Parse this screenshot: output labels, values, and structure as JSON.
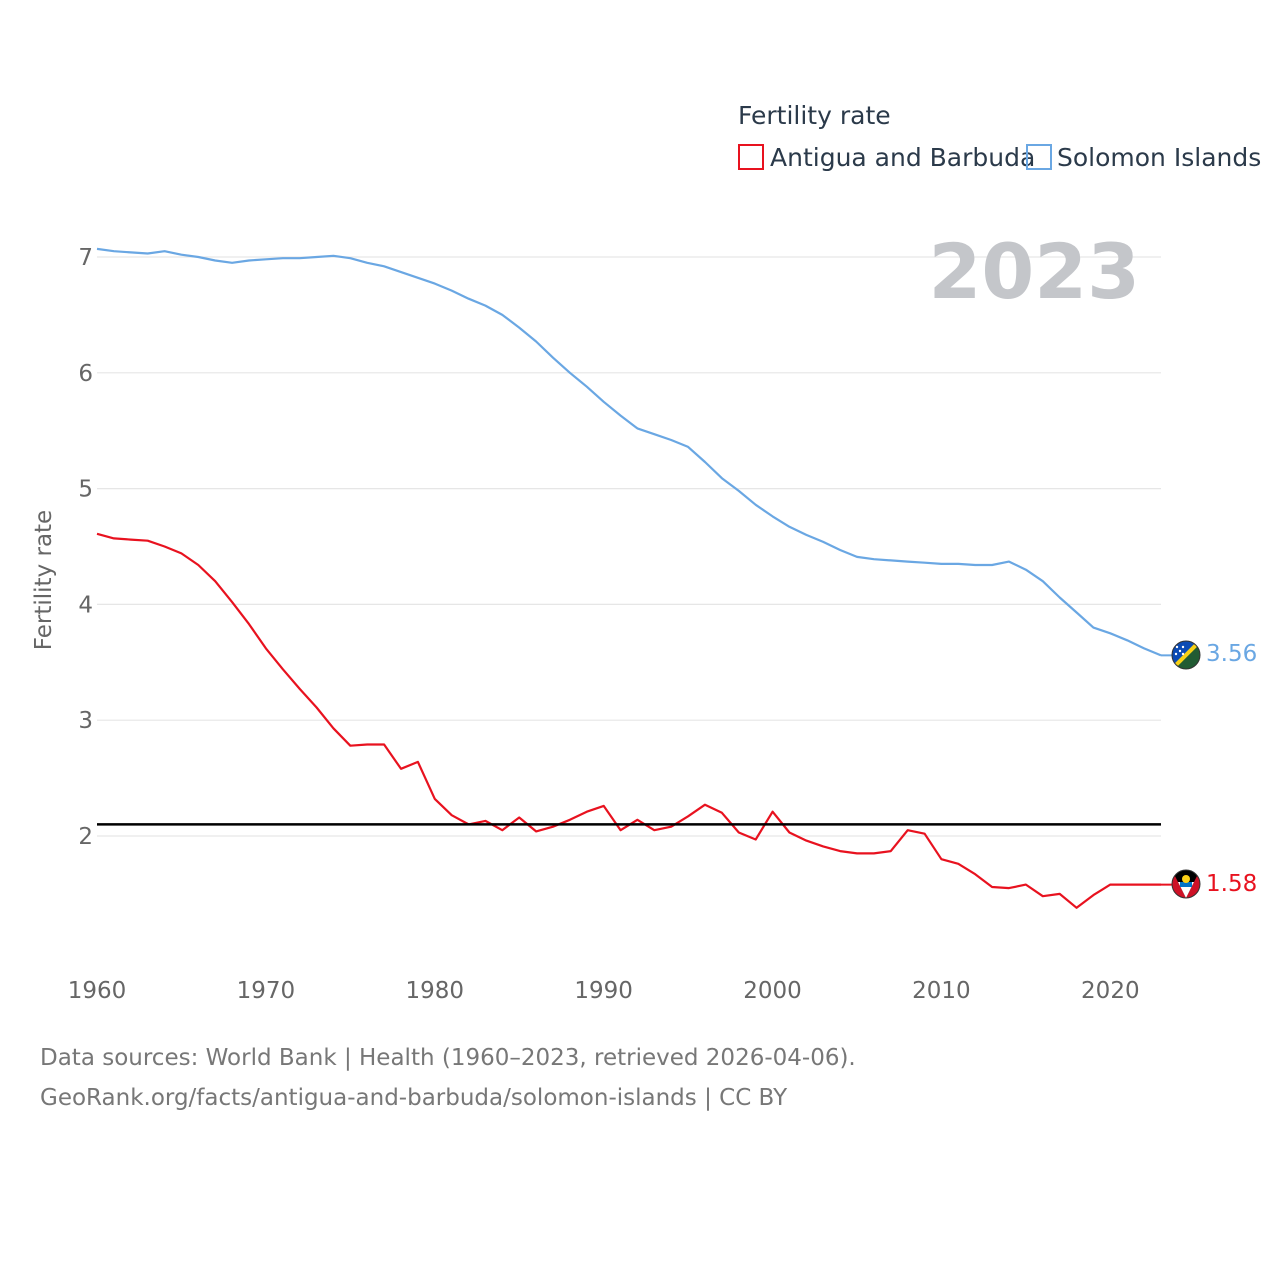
{
  "chart_data": {
    "type": "line",
    "legend_title": "Fertility rate",
    "ylabel": "Fertility rate",
    "year_label": "2023",
    "x": [
      1960,
      1961,
      1962,
      1963,
      1964,
      1965,
      1966,
      1967,
      1968,
      1969,
      1970,
      1971,
      1972,
      1973,
      1974,
      1975,
      1976,
      1977,
      1978,
      1979,
      1980,
      1981,
      1982,
      1983,
      1984,
      1985,
      1986,
      1987,
      1988,
      1989,
      1990,
      1991,
      1992,
      1993,
      1994,
      1995,
      1996,
      1997,
      1998,
      1999,
      2000,
      2001,
      2002,
      2003,
      2004,
      2005,
      2006,
      2007,
      2008,
      2009,
      2010,
      2011,
      2012,
      2013,
      2014,
      2015,
      2016,
      2017,
      2018,
      2019,
      2020,
      2021,
      2022,
      2023
    ],
    "xlim": [
      1960,
      2023
    ],
    "ylim": [
      1.1,
      7.1
    ],
    "x_ticks": [
      1960,
      1970,
      1980,
      1990,
      2000,
      2010,
      2020
    ],
    "y_ticks": [
      2,
      3,
      4,
      5,
      6,
      7
    ],
    "reference_line": 2.1,
    "series": [
      {
        "name": "Antigua and Barbuda",
        "color": "#e8121f",
        "end_label": "1.58",
        "values": [
          4.61,
          4.57,
          4.56,
          4.55,
          4.5,
          4.44,
          4.34,
          4.2,
          4.02,
          3.83,
          3.62,
          3.44,
          3.27,
          3.11,
          2.93,
          2.78,
          2.79,
          2.79,
          2.58,
          2.64,
          2.32,
          2.18,
          2.1,
          2.13,
          2.05,
          2.16,
          2.04,
          2.08,
          2.14,
          2.21,
          2.26,
          2.05,
          2.14,
          2.05,
          2.08,
          2.17,
          2.27,
          2.2,
          2.03,
          1.97,
          2.21,
          2.03,
          1.96,
          1.91,
          1.87,
          1.85,
          1.85,
          1.87,
          2.05,
          2.02,
          1.8,
          1.76,
          1.67,
          1.56,
          1.55,
          1.58,
          1.48,
          1.5,
          1.38,
          1.49,
          1.58,
          1.58,
          1.58,
          1.58
        ]
      },
      {
        "name": "Solomon Islands",
        "color": "#6aa7e3",
        "end_label": "3.56",
        "values": [
          7.07,
          7.05,
          7.04,
          7.03,
          7.05,
          7.02,
          7.0,
          6.97,
          6.95,
          6.97,
          6.98,
          6.99,
          6.99,
          7.0,
          7.01,
          6.99,
          6.95,
          6.92,
          6.87,
          6.82,
          6.77,
          6.71,
          6.64,
          6.58,
          6.5,
          6.39,
          6.27,
          6.13,
          6.0,
          5.88,
          5.75,
          5.63,
          5.52,
          5.47,
          5.42,
          5.36,
          5.23,
          5.09,
          4.98,
          4.86,
          4.76,
          4.67,
          4.6,
          4.54,
          4.47,
          4.41,
          4.39,
          4.38,
          4.37,
          4.36,
          4.35,
          4.35,
          4.34,
          4.34,
          4.37,
          4.3,
          4.2,
          4.06,
          3.93,
          3.8,
          3.75,
          3.69,
          3.62,
          3.56
        ]
      }
    ]
  },
  "footer": {
    "line1": "Data sources: World Bank | Health (1960–2023, retrieved 2026-04-06).",
    "line2": "GeoRank.org/facts/antigua-and-barbuda/solomon-islands | CC BY"
  }
}
